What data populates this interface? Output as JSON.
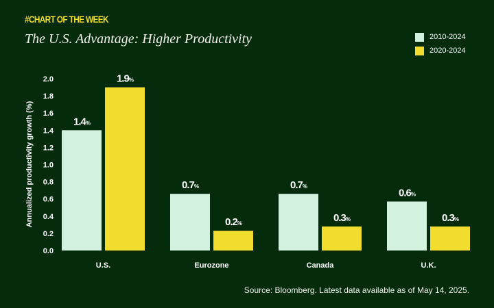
{
  "header": {
    "kicker": "#CHART OF THE WEEK",
    "title": "The U.S. Advantage: Higher Productivity"
  },
  "colors": {
    "background": "#032b0c",
    "series_2010": "#d3f1df",
    "series_2020": "#f2dd2f"
  },
  "chart_data": {
    "type": "bar",
    "categories": [
      "U.S.",
      "Eurozone",
      "Canada",
      "U.K."
    ],
    "series": [
      {
        "name": "2010-2024",
        "values": [
          1.4,
          0.66,
          0.66,
          0.57
        ],
        "labels": [
          "1.4",
          "0.7",
          "0.7",
          "0.6"
        ]
      },
      {
        "name": "2020-2024",
        "values": [
          1.9,
          0.23,
          0.28,
          0.28
        ],
        "labels": [
          "1.9",
          "0.2",
          "0.3",
          "0.3"
        ]
      }
    ],
    "label_suffix": "%",
    "ylabel": "Annualized productivity growth (%)",
    "yticks": [
      "0.0",
      "0.2",
      "0.4",
      "0.6",
      "0.8",
      "1.0",
      "1.2",
      "1.4",
      "1.6",
      "1.8",
      "2.0"
    ],
    "ylim": [
      0,
      2.0
    ],
    "grid": false,
    "legend_position": "top-right"
  },
  "footer": {
    "source": "Source: Bloomberg. Latest data available as of May 14, 2025."
  }
}
